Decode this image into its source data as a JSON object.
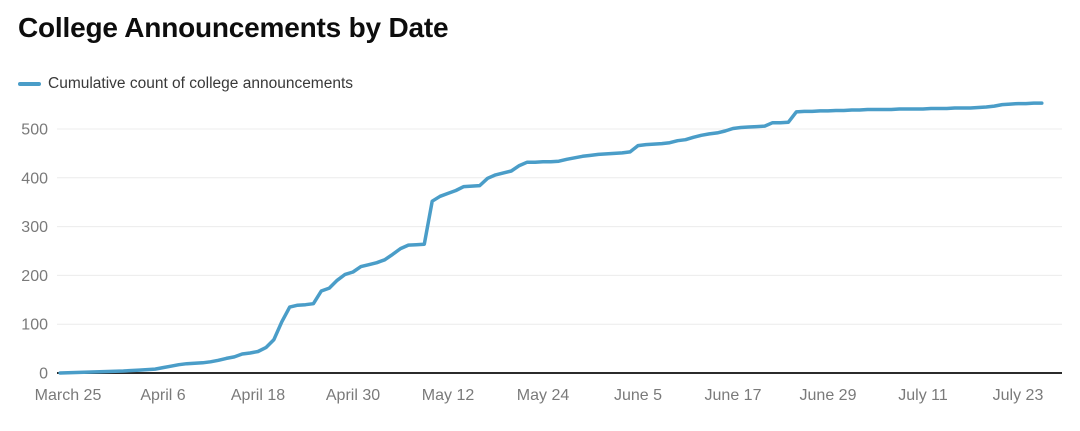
{
  "chart_data": {
    "type": "line",
    "title": "College Announcements by Date",
    "legend": {
      "label": "Cumulative count of college announcements",
      "position": "top-left"
    },
    "colors": {
      "line": "#4a9dc8",
      "title_text": "#0d0d0d",
      "legend_text": "#393939",
      "tick_label_text": "#7a7a7a",
      "gridline": "#ececec",
      "axis_line": "#2b2b2b",
      "background": "#ffffff"
    },
    "grid": true,
    "x_axis": {
      "tick_labels": [
        "March 25",
        "April 6",
        "April 18",
        "April 30",
        "May 12",
        "May 24",
        "June 5",
        "June 17",
        "June 29",
        "July 11",
        "July 23"
      ],
      "tick_days_from_start": [
        1,
        13,
        25,
        37,
        49,
        61,
        73,
        85,
        97,
        109,
        121
      ],
      "start_date": "March 24",
      "end_date": "July 26",
      "tick_interval_days": 12
    },
    "y_axis": {
      "ticks": [
        0,
        100,
        200,
        300,
        400,
        500
      ],
      "range": [
        0,
        560
      ],
      "label": ""
    },
    "series": [
      {
        "name": "Cumulative count of college announcements",
        "points_day_value": [
          [
            0,
            0
          ],
          [
            2,
            1
          ],
          [
            4,
            2
          ],
          [
            6,
            3
          ],
          [
            8,
            4
          ],
          [
            10,
            6
          ],
          [
            12,
            8
          ],
          [
            13,
            11
          ],
          [
            14,
            14
          ],
          [
            15,
            17
          ],
          [
            16,
            19
          ],
          [
            17,
            20
          ],
          [
            18,
            21
          ],
          [
            19,
            23
          ],
          [
            20,
            26
          ],
          [
            21,
            30
          ],
          [
            22,
            33
          ],
          [
            23,
            39
          ],
          [
            24,
            41
          ],
          [
            25,
            44
          ],
          [
            26,
            52
          ],
          [
            27,
            68
          ],
          [
            28,
            105
          ],
          [
            29,
            135
          ],
          [
            30,
            139
          ],
          [
            31,
            140
          ],
          [
            32,
            142
          ],
          [
            33,
            168
          ],
          [
            34,
            174
          ],
          [
            35,
            190
          ],
          [
            36,
            202
          ],
          [
            37,
            207
          ],
          [
            38,
            218
          ],
          [
            39,
            222
          ],
          [
            40,
            226
          ],
          [
            41,
            232
          ],
          [
            42,
            243
          ],
          [
            43,
            255
          ],
          [
            44,
            262
          ],
          [
            45,
            263
          ],
          [
            46,
            264
          ],
          [
            47,
            352
          ],
          [
            48,
            362
          ],
          [
            49,
            368
          ],
          [
            50,
            374
          ],
          [
            51,
            382
          ],
          [
            52,
            383
          ],
          [
            53,
            384
          ],
          [
            54,
            399
          ],
          [
            55,
            406
          ],
          [
            56,
            410
          ],
          [
            57,
            414
          ],
          [
            58,
            425
          ],
          [
            59,
            432
          ],
          [
            60,
            432
          ],
          [
            61,
            433
          ],
          [
            62,
            433
          ],
          [
            63,
            434
          ],
          [
            64,
            438
          ],
          [
            65,
            441
          ],
          [
            66,
            444
          ],
          [
            67,
            446
          ],
          [
            68,
            448
          ],
          [
            69,
            449
          ],
          [
            70,
            450
          ],
          [
            71,
            451
          ],
          [
            72,
            453
          ],
          [
            73,
            466
          ],
          [
            74,
            468
          ],
          [
            75,
            469
          ],
          [
            76,
            470
          ],
          [
            77,
            472
          ],
          [
            78,
            476
          ],
          [
            79,
            478
          ],
          [
            80,
            483
          ],
          [
            81,
            487
          ],
          [
            82,
            490
          ],
          [
            83,
            492
          ],
          [
            84,
            496
          ],
          [
            85,
            501
          ],
          [
            86,
            503
          ],
          [
            87,
            504
          ],
          [
            88,
            505
          ],
          [
            89,
            506
          ],
          [
            90,
            513
          ],
          [
            91,
            513
          ],
          [
            92,
            514
          ],
          [
            93,
            535
          ],
          [
            94,
            536
          ],
          [
            95,
            536
          ],
          [
            96,
            537
          ],
          [
            97,
            537
          ],
          [
            98,
            538
          ],
          [
            99,
            538
          ],
          [
            100,
            539
          ],
          [
            101,
            539
          ],
          [
            102,
            540
          ],
          [
            103,
            540
          ],
          [
            104,
            540
          ],
          [
            105,
            540
          ],
          [
            106,
            541
          ],
          [
            107,
            541
          ],
          [
            108,
            541
          ],
          [
            109,
            541
          ],
          [
            110,
            542
          ],
          [
            111,
            542
          ],
          [
            112,
            542
          ],
          [
            113,
            543
          ],
          [
            114,
            543
          ],
          [
            115,
            543
          ],
          [
            116,
            544
          ],
          [
            117,
            545
          ],
          [
            118,
            547
          ],
          [
            119,
            550
          ],
          [
            120,
            551
          ],
          [
            121,
            552
          ],
          [
            122,
            552
          ],
          [
            123,
            553
          ],
          [
            124,
            553
          ]
        ]
      }
    ],
    "final_value": 553
  }
}
